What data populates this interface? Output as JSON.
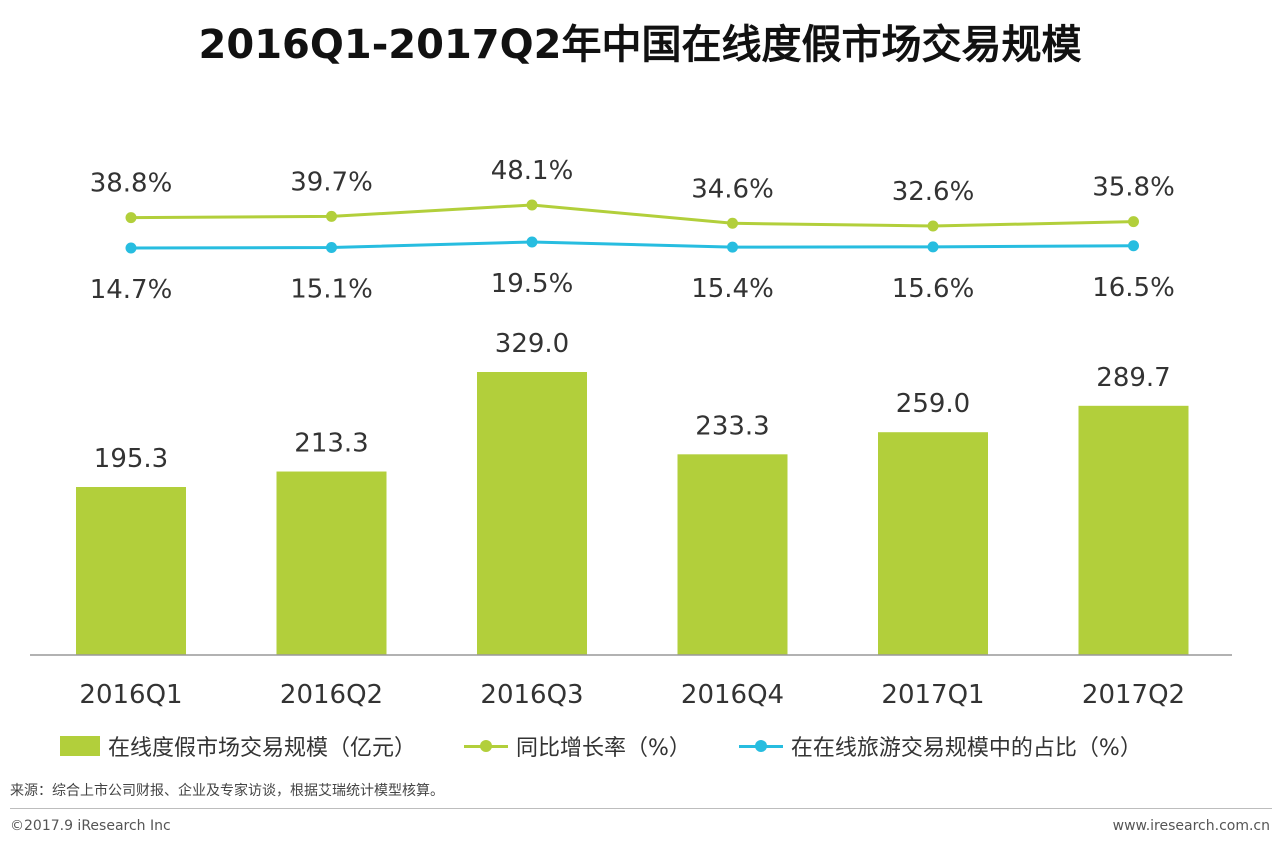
{
  "colors": {
    "bar": "#b2cf3b",
    "growth_line": "#b2cf3b",
    "share_line": "#27bde0",
    "axis": "#999999",
    "text": "#333333"
  },
  "chart_data": {
    "type": "bar",
    "title": "2016Q1-2017Q2年中国在线度假市场交易规模",
    "categories": [
      "2016Q1",
      "2016Q2",
      "2016Q3",
      "2016Q4",
      "2017Q1",
      "2017Q2"
    ],
    "series": [
      {
        "name": "在线度假市场交易规模（亿元）",
        "type": "bar",
        "values": [
          195.3,
          213.3,
          329.0,
          233.3,
          259.0,
          289.7
        ],
        "labels": [
          "195.3",
          "213.3",
          "329.0",
          "233.3",
          "259.0",
          "289.7"
        ]
      },
      {
        "name": "同比增长率（%）",
        "type": "line",
        "values": [
          38.8,
          39.7,
          48.1,
          34.6,
          32.6,
          35.8
        ],
        "labels": [
          "38.8%",
          "39.7%",
          "48.1%",
          "34.6%",
          "32.6%",
          "35.8%"
        ]
      },
      {
        "name": "在在线旅游交易规模中的占比（%）",
        "type": "line",
        "values": [
          14.7,
          15.1,
          19.5,
          15.4,
          15.6,
          16.5
        ],
        "labels": [
          "14.7%",
          "15.1%",
          "19.5%",
          "15.4%",
          "15.6%",
          "16.5%"
        ]
      }
    ],
    "grid": false,
    "legend_position": "bottom"
  },
  "legend": {
    "bar_label": "在线度假市场交易规模（亿元）",
    "growth_label": "同比增长率（%）",
    "share_label": "在在线旅游交易规模中的占比（%）"
  },
  "source": "来源：综合上市公司财报、企业及专家访谈，根据艾瑞统计模型核算。",
  "footer": {
    "copyright": "©2017.9 iResearch Inc",
    "website": "www.iresearch.com.cn"
  }
}
